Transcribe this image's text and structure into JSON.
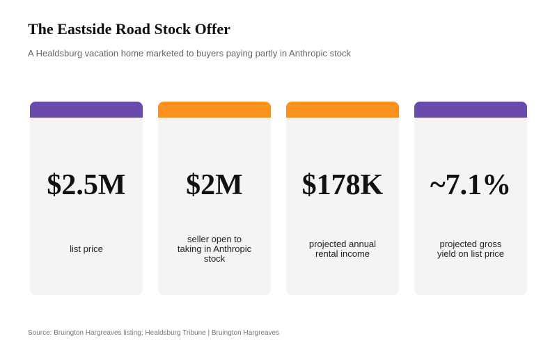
{
  "header": {
    "title": "The Eastside Road Stock Offer",
    "subtitle": "A Healdsburg vacation home marketed to buyers paying partly in Anthropic stock"
  },
  "colors": {
    "purple": "#6a4bab",
    "orange": "#fb921f",
    "card_background": "#f5f4f3"
  },
  "cards": [
    {
      "value": "$2.5M",
      "label": "list price",
      "accent": "#6a4bab"
    },
    {
      "value": "$2M",
      "label": "seller open to taking in Anthropic stock",
      "accent": "#fb921f"
    },
    {
      "value": "$178K",
      "label": "projected annual rental income",
      "accent": "#fb921f"
    },
    {
      "value": "~7.1%",
      "label": "projected gross yield on list price",
      "accent": "#6a4bab"
    }
  ],
  "footer": {
    "source": "Source: Bruington Hargreaves listing; Healdsburg Tribune  |  Bruington Hargreaves"
  }
}
